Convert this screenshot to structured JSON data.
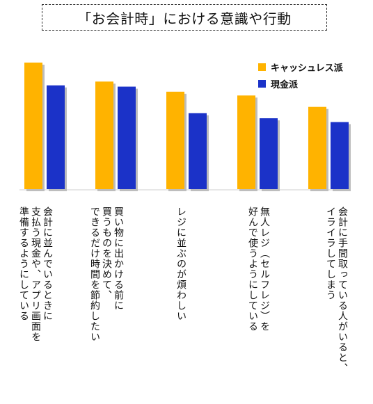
{
  "colors": {
    "cashless": "#FFB300",
    "cash": "#1B32C8",
    "shadow": "#bdbdbd",
    "baseline": "#cfcfcf"
  },
  "chart_data": {
    "type": "bar",
    "title": "「お会計時」における意識や行動",
    "ylim": [
      0,
      100
    ],
    "grid": false,
    "legend_position": "top-right",
    "categories": [
      "会計に並んでいるときに\n支払う現金や、アプリ画面を\n準備するようにしている",
      "買い物に出かける前に\n買うものを決めて、\nできるだけ時間を節約したい",
      "レジに並ぶのが煩わしい",
      "無人レジ（セルフレジ）を\n好んで使うようにしている",
      "会計に手間取っている人がいると、\nイライラしてしまう"
    ],
    "series": [
      {
        "name": "キャッシュレス派",
        "values": [
          100,
          85,
          77,
          74,
          65
        ]
      },
      {
        "name": "現金派",
        "values": [
          82,
          81,
          60,
          56,
          53
        ]
      }
    ]
  }
}
